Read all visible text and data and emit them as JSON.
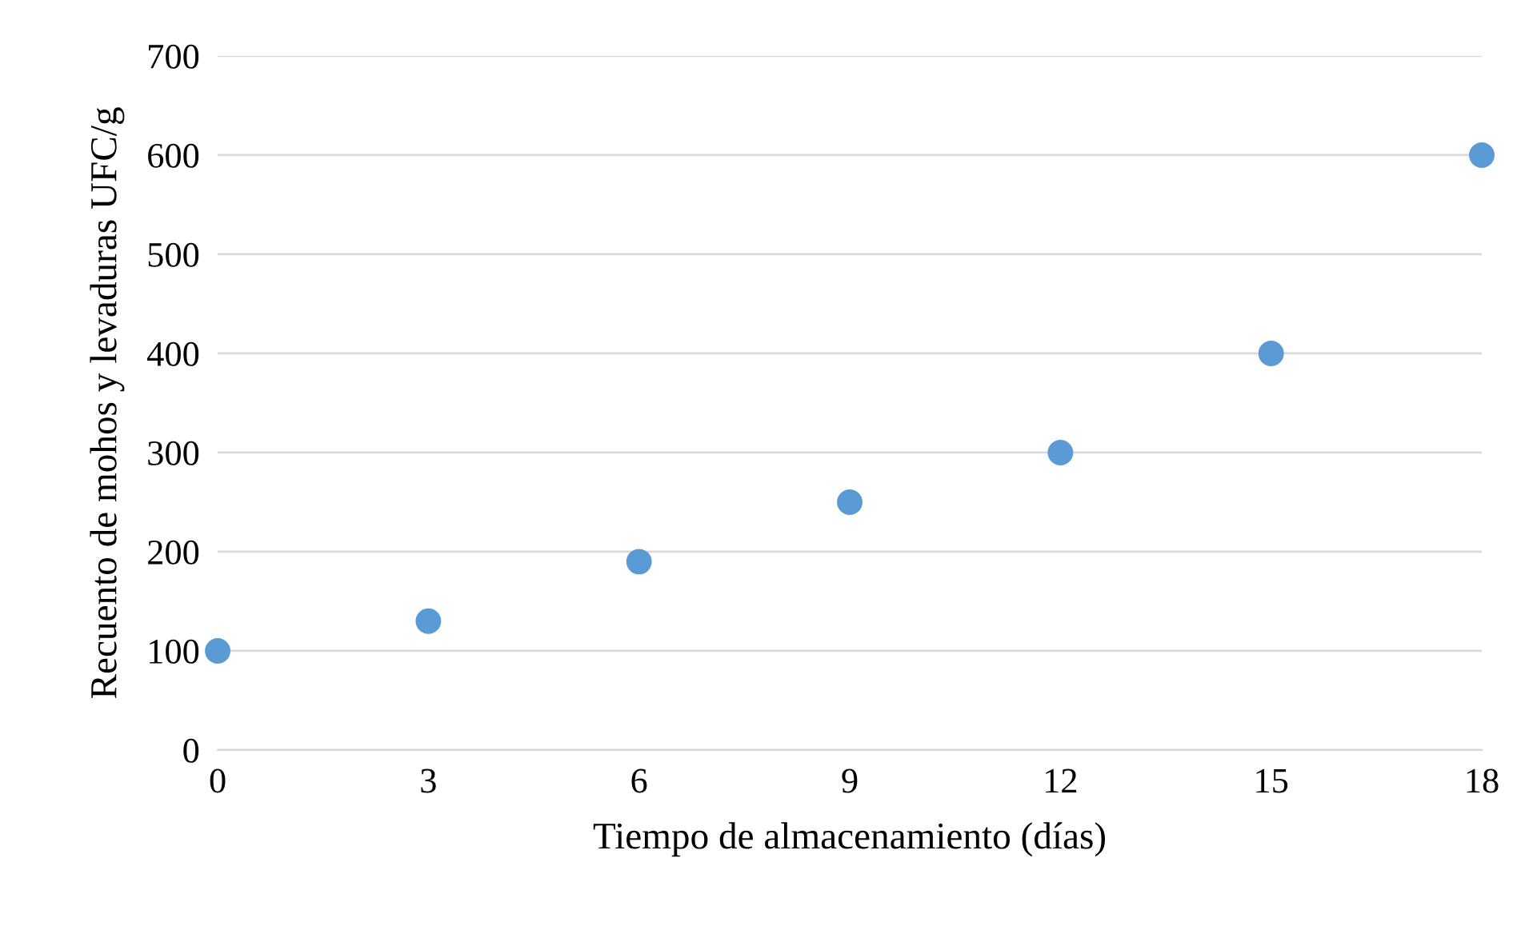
{
  "chart_data": {
    "type": "scatter",
    "xlabel": "Tiempo de almacenamiento (días)",
    "ylabel": "Recuento de mohos y levaduras UFC/g",
    "x": [
      0,
      3,
      6,
      9,
      12,
      15,
      18
    ],
    "series": [
      {
        "color": "#5b9bd5",
        "values": [
          100,
          130,
          190,
          250,
          300,
          400,
          600
        ]
      }
    ],
    "xlim": [
      0,
      18
    ],
    "xticks": [
      0,
      3,
      6,
      9,
      12,
      15,
      18
    ],
    "ylim": [
      0,
      700
    ],
    "yticks": [
      0,
      100,
      200,
      300,
      400,
      500,
      600,
      700
    ],
    "grid": "y",
    "marker": "circle",
    "legend": false
  }
}
